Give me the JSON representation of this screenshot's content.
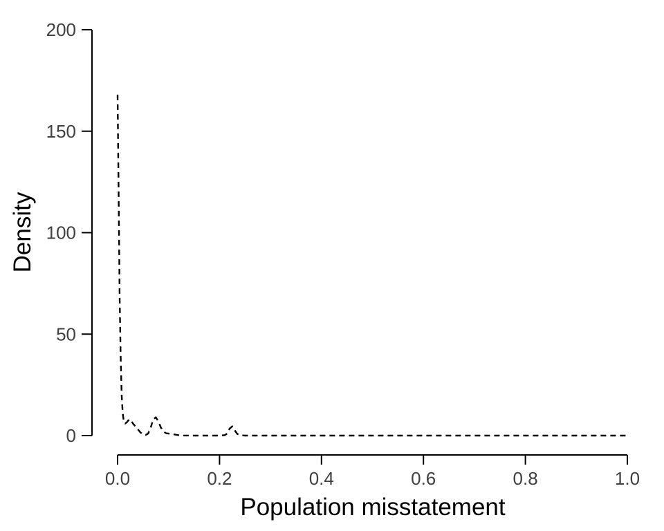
{
  "chart_data": {
    "type": "line",
    "title": "",
    "xlabel": "Population misstatement",
    "ylabel": "Density",
    "xlim": [
      0,
      1
    ],
    "ylim": [
      0,
      200
    ],
    "xticks": [
      0,
      0.2,
      0.4,
      0.6,
      0.8,
      1
    ],
    "xtick_labels": [
      "0.0",
      "0.2",
      "0.4",
      "0.6",
      "0.8",
      "1.0"
    ],
    "yticks": [
      0,
      50,
      100,
      150,
      200
    ],
    "ytick_labels": [
      "0",
      "50",
      "100",
      "150",
      "200"
    ],
    "grid": false,
    "legend": "none",
    "line_style": "dashed",
    "line_color": "#000000",
    "series": [
      {
        "x": [
          0.0,
          0.002,
          0.004,
          0.006,
          0.008,
          0.01,
          0.012,
          0.015,
          0.018,
          0.021,
          0.025,
          0.03,
          0.035,
          0.04,
          0.045,
          0.05,
          0.055,
          0.06,
          0.065,
          0.07,
          0.075,
          0.08,
          0.085,
          0.09,
          0.095,
          0.1,
          0.11,
          0.12,
          0.13,
          0.15,
          0.18,
          0.2,
          0.21,
          0.215,
          0.22,
          0.225,
          0.23,
          0.235,
          0.24,
          0.25,
          0.3,
          0.4,
          0.5,
          0.6,
          0.7,
          0.8,
          0.9,
          1.0
        ],
        "y": [
          168,
          120,
          70,
          40,
          20,
          11,
          7.5,
          6,
          6.5,
          7.5,
          8,
          6,
          4.5,
          3,
          1.5,
          0.6,
          0.3,
          1.0,
          4,
          8,
          9,
          7,
          4,
          2,
          1.2,
          1.0,
          0.6,
          0.2,
          0.05,
          0,
          0,
          0,
          0.2,
          1,
          3.5,
          4.5,
          2.5,
          0.8,
          0.2,
          0,
          0,
          0,
          0,
          0,
          0,
          0,
          0,
          0
        ]
      }
    ]
  }
}
